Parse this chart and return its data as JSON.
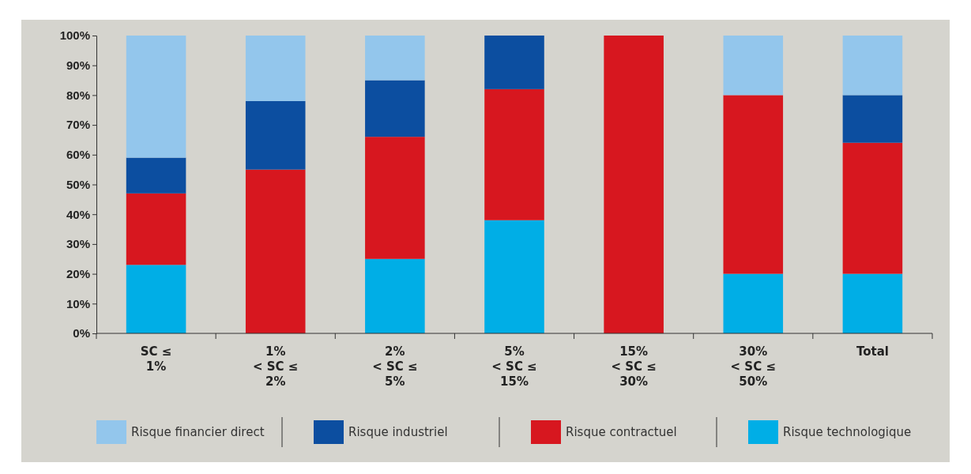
{
  "chart_data": {
    "type": "bar",
    "stacked": true,
    "categories": [
      "SC ≤\n1%",
      "1%\n< SC ≤\n2%",
      "2%\n< SC ≤\n5%",
      "5%\n< SC ≤\n15%",
      "15%\n< SC ≤\n30%",
      "30%\n< SC ≤\n50%",
      "Total"
    ],
    "series": [
      {
        "name": "Risque technologique",
        "color": "#00aee6",
        "values": [
          23,
          0,
          25,
          38,
          0,
          20,
          20
        ]
      },
      {
        "name": "Risque contractuel",
        "color": "#d7171f",
        "values": [
          24,
          55,
          41,
          44,
          100,
          60,
          44
        ]
      },
      {
        "name": "Risque industriel",
        "color": "#0c4ea0",
        "values": [
          12,
          23,
          19,
          18,
          0,
          0,
          16
        ]
      },
      {
        "name": "Risque financier direct",
        "color": "#93c6ec",
        "values": [
          41,
          22,
          15,
          0,
          0,
          20,
          20
        ]
      }
    ],
    "ylim": [
      0,
      100
    ],
    "yticks": [
      {
        "value": 0,
        "label": "0%"
      },
      {
        "value": 10,
        "label": "10%"
      },
      {
        "value": 20,
        "label": "20%"
      },
      {
        "value": 30,
        "label": "30%"
      },
      {
        "value": 40,
        "label": "40%"
      },
      {
        "value": 50,
        "label": "50%"
      },
      {
        "value": 60,
        "label": "60%"
      },
      {
        "value": 70,
        "label": "70%"
      },
      {
        "value": 80,
        "label": "80%"
      },
      {
        "value": 90,
        "label": "90%"
      },
      {
        "value": 100,
        "label": "100%"
      }
    ],
    "grid": false,
    "legend": "bottom"
  }
}
